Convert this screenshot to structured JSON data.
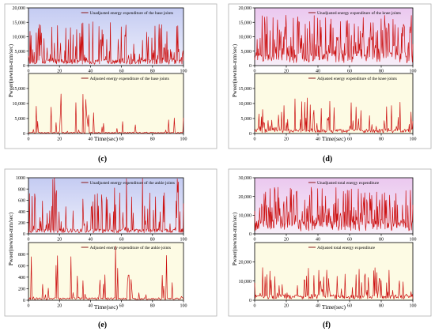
{
  "colors": {
    "series": "#cc1111",
    "legend_line": "#8b1a1a",
    "panel_blue_top": "#c4cbf2",
    "panel_blue_bottom": "#eeeffb",
    "panel_pink_top": "#ebc8ef",
    "panel_pink_bottom": "#f7eef8",
    "panel_yellow": "#fdfbe4",
    "axis": "#000000",
    "outer_border": "#b0b0b0"
  },
  "chart_data": [
    {
      "id": "c",
      "type": "line",
      "caption": "(c)",
      "ylabel": "Pwoer(newton-mm/sec)",
      "xlabel": "Time(sec)",
      "xlim": [
        0,
        100
      ],
      "xticks": [
        0,
        20,
        40,
        60,
        80,
        100
      ],
      "xtick_labels": [
        "0",
        "20",
        "40",
        "60",
        "80",
        "100"
      ],
      "top": {
        "legend": "Unadjusted energy expenditure of the base joints",
        "background": "blue",
        "ylim": [
          0,
          20000
        ],
        "yticks": [
          0,
          5000,
          10000,
          15000,
          20000
        ],
        "ytick_labels": [
          "0",
          "5,000",
          "10,000",
          "15,000",
          "20,000"
        ],
        "series": {
          "n": 300,
          "mode": "dense",
          "baseline": 1500,
          "peak_max": 15500,
          "peak_prob": 0.35
        }
      },
      "bottom": {
        "legend": "Adjusted energy expenditure of the base joints",
        "background": "yellow",
        "ylim": [
          0,
          20000
        ],
        "yticks": [
          0,
          5000,
          10000,
          15000
        ],
        "ytick_labels": [
          "0",
          "5,000",
          "10,000",
          "15,000"
        ],
        "series": {
          "n": 220,
          "mode": "sparse",
          "baseline": 300,
          "peak_max": 14000,
          "peak_prob": 0.18
        }
      }
    },
    {
      "id": "d",
      "type": "line",
      "caption": "(d)",
      "ylabel": "Pwoer(newton-mm/sec)",
      "xlabel": "Time(sec)",
      "xlim": [
        0,
        100
      ],
      "xticks": [
        0,
        20,
        40,
        60,
        80,
        100
      ],
      "xtick_labels": [
        "0",
        "20",
        "40",
        "60",
        "80",
        "100"
      ],
      "top": {
        "legend": "Unadjusted energy expenditure of the knee joints",
        "background": "pink",
        "ylim": [
          0,
          20000
        ],
        "yticks": [
          0,
          5000,
          10000,
          15000,
          20000
        ],
        "ytick_labels": [
          "0",
          "5,000",
          "10,000",
          "15,000",
          "20,000"
        ],
        "series": {
          "n": 320,
          "mode": "dense",
          "baseline": 3000,
          "peak_max": 17500,
          "peak_prob": 0.55
        }
      },
      "bottom": {
        "legend": "Adjusted energy expenditure of the knee joints",
        "background": "yellow",
        "ylim": [
          0,
          20000
        ],
        "yticks": [
          0,
          5000,
          10000,
          15000
        ],
        "ytick_labels": [
          "0",
          "5,000",
          "10,000",
          "15,000"
        ],
        "series": {
          "n": 260,
          "mode": "medium",
          "baseline": 1000,
          "peak_max": 12000,
          "peak_prob": 0.3
        }
      }
    },
    {
      "id": "e",
      "type": "line",
      "caption": "(e)",
      "ylabel": "Pwoer(newton-mm/sec)",
      "xlabel": "Time(sec)",
      "xlim": [
        0,
        100
      ],
      "xticks": [
        0,
        20,
        40,
        60,
        80,
        100
      ],
      "xtick_labels": [
        "0",
        "20",
        "40",
        "60",
        "80",
        "100"
      ],
      "top": {
        "legend": "Unadjusted energy expenditure of the ankle joints",
        "background": "blue",
        "ylim": [
          0,
          1000
        ],
        "yticks": [
          0,
          200,
          400,
          600,
          800,
          1000
        ],
        "ytick_labels": [
          "0",
          "200",
          "400",
          "600",
          "800",
          "1000"
        ],
        "series": {
          "n": 300,
          "mode": "dense",
          "baseline": 60,
          "peak_max": 1000,
          "peak_prob": 0.3
        }
      },
      "bottom": {
        "legend": "Adjusted energy expenditure of the ankle joints",
        "background": "yellow",
        "ylim": [
          0,
          1000
        ],
        "yticks": [
          0,
          200,
          400,
          600,
          800
        ],
        "ytick_labels": [
          "0",
          "200",
          "400",
          "600",
          "800"
        ],
        "series": {
          "n": 220,
          "mode": "sparse",
          "baseline": 30,
          "peak_max": 950,
          "peak_prob": 0.15
        }
      }
    },
    {
      "id": "f",
      "type": "line",
      "caption": "(f)",
      "ylabel": "Pwoer(newton-mm/sec)",
      "xlabel": "Time(sec)",
      "xlim": [
        0,
        100
      ],
      "xticks": [
        0,
        20,
        40,
        60,
        80,
        100
      ],
      "xtick_labels": [
        "0",
        "20",
        "40",
        "60",
        "80",
        "100"
      ],
      "top": {
        "legend": "Unadjusted total energy expenditure",
        "background": "pink",
        "ylim": [
          0,
          30000
        ],
        "yticks": [
          0,
          10000,
          20000,
          30000
        ],
        "ytick_labels": [
          "0",
          "10,000",
          "20,000",
          "30,000"
        ],
        "series": {
          "n": 320,
          "mode": "dense",
          "baseline": 5000,
          "peak_max": 25000,
          "peak_prob": 0.55
        }
      },
      "bottom": {
        "legend": "Adjusted total energy expenditure",
        "background": "yellow",
        "ylim": [
          0,
          30000
        ],
        "yticks": [
          0,
          10000,
          20000
        ],
        "ytick_labels": [
          "0",
          "10,000",
          "20,000"
        ],
        "series": {
          "n": 260,
          "mode": "medium",
          "baseline": 2000,
          "peak_max": 17000,
          "peak_prob": 0.3
        }
      }
    }
  ]
}
